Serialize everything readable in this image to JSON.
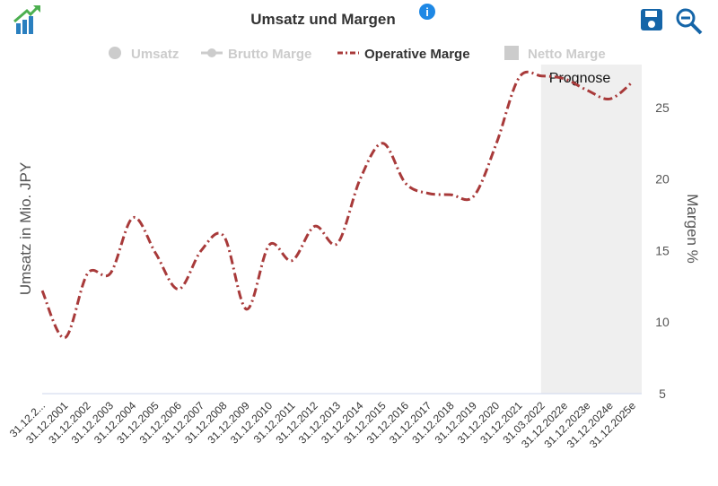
{
  "chart_data": {
    "type": "line",
    "title": "Umsatz und Margen",
    "categories": [
      "31.12.2...",
      "31.12.2001",
      "31.12.2002",
      "31.12.2003",
      "31.12.2004",
      "31.12.2005",
      "31.12.2006",
      "31.12.2007",
      "31.12.2008",
      "31.12.2009",
      "31.12.2010",
      "31.12.2011",
      "31.12.2012",
      "31.12.2013",
      "31.12.2014",
      "31.12.2015",
      "31.12.2016",
      "31.12.2017",
      "31.12.2018",
      "31.12.2019",
      "31.12.2020",
      "31.12.2021",
      "31.03.2022",
      "31.12.2022e",
      "31.12.2023e",
      "31.12.2024e",
      "31.12.2025e"
    ],
    "series": [
      {
        "name": "Operative Marge",
        "color": "#a83a3a",
        "axis": "y2",
        "values": [
          12.2,
          8.9,
          13.4,
          13.4,
          17.3,
          14.8,
          12.3,
          15.0,
          16.0,
          10.9,
          15.4,
          14.3,
          16.7,
          15.5,
          20.0,
          22.5,
          19.7,
          19.0,
          18.9,
          18.8,
          22.5,
          27.1,
          27.2,
          27.0,
          26.2,
          25.6,
          26.8
        ]
      }
    ],
    "legend": [
      {
        "name": "Umsatz",
        "hidden": true
      },
      {
        "name": "Brutto Marge",
        "hidden": true
      },
      {
        "name": "Operative Marge",
        "hidden": false
      },
      {
        "name": "Netto Marge",
        "hidden": true
      }
    ],
    "ylabel": "Umsatz in Mio. JPY",
    "y2label": "Margen %",
    "y2lim": [
      5,
      28
    ],
    "y2ticks": [
      5,
      10,
      15,
      20,
      25
    ],
    "forecast": {
      "label": "Prognose",
      "from_category": "31.03.2022"
    }
  }
}
